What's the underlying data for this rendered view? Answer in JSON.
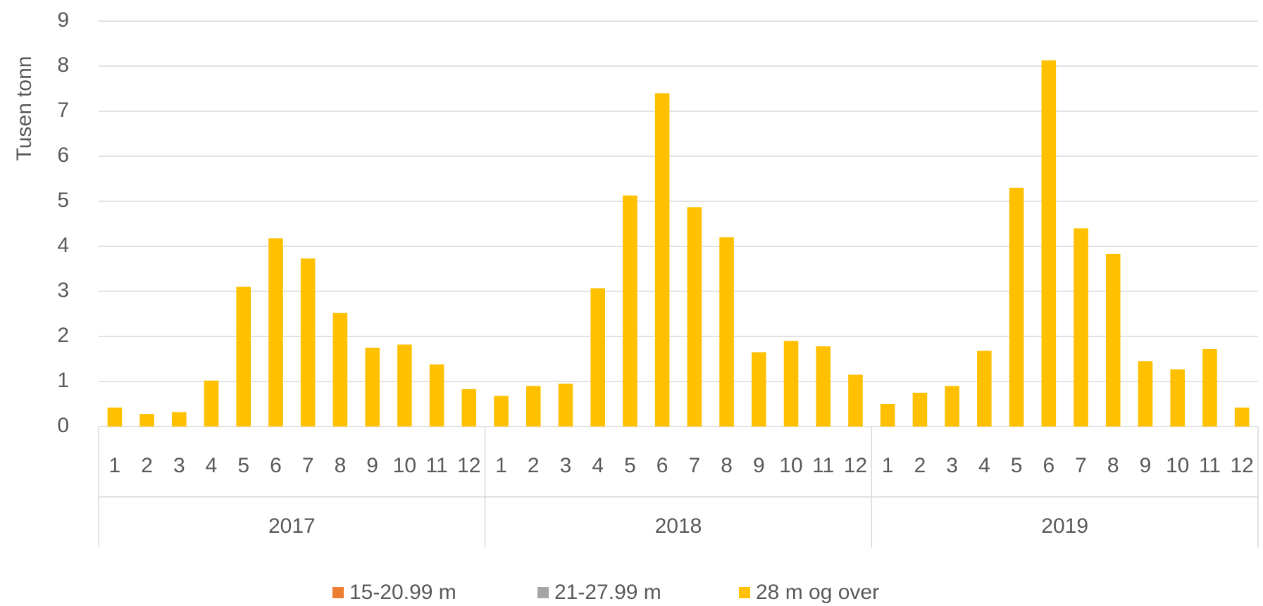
{
  "chart_data": {
    "type": "stacked_bar",
    "y_label": "Tusen tonn",
    "categories": [
      "1",
      "2",
      "3",
      "4",
      "5",
      "6",
      "7",
      "8",
      "9",
      "10",
      "11",
      "12",
      "1",
      "2",
      "3",
      "4",
      "5",
      "6",
      "7",
      "8",
      "9",
      "10",
      "11",
      "12",
      "1",
      "2",
      "3",
      "4",
      "5",
      "6",
      "7",
      "8",
      "9",
      "10",
      "11",
      "12"
    ],
    "groups": [
      "2017",
      "2018",
      "2019"
    ],
    "series": [
      {
        "name": "15-20.99 m",
        "color": "#ed7d31",
        "values": [
          0,
          0,
          0,
          0,
          0,
          0,
          0,
          0,
          0,
          0,
          0,
          0,
          0,
          0,
          0,
          0,
          0,
          0,
          0,
          0,
          0,
          0,
          0,
          0,
          0,
          0,
          0,
          0,
          0,
          0,
          0,
          0,
          0,
          0,
          0,
          0
        ]
      },
      {
        "name": "21-27.99 m",
        "color": "#a5a5a5",
        "values": [
          0,
          0,
          0,
          0,
          0,
          0,
          0,
          0,
          0,
          0,
          0,
          0,
          0,
          0,
          0,
          0,
          0,
          0,
          0,
          0,
          0,
          0,
          0,
          0,
          0,
          0,
          0,
          0,
          0,
          0,
          0,
          0,
          0,
          0,
          0,
          0
        ]
      },
      {
        "name": "28 m og over",
        "color": "#ffc000",
        "values": [
          0.42,
          0.28,
          0.32,
          1.02,
          3.1,
          4.18,
          3.73,
          2.52,
          1.75,
          1.82,
          1.38,
          0.83,
          0.68,
          0.9,
          0.95,
          3.07,
          5.13,
          7.4,
          4.87,
          4.2,
          1.65,
          1.9,
          1.78,
          1.15,
          0.5,
          0.75,
          0.9,
          1.68,
          5.3,
          8.13,
          4.4,
          3.83,
          1.45,
          1.27,
          1.72,
          0.42
        ]
      }
    ],
    "ylim": [
      0,
      9
    ],
    "yticks": [
      0,
      1,
      2,
      3,
      4,
      5,
      6,
      7,
      8,
      9
    ],
    "grid": true,
    "legend": "bottom"
  }
}
